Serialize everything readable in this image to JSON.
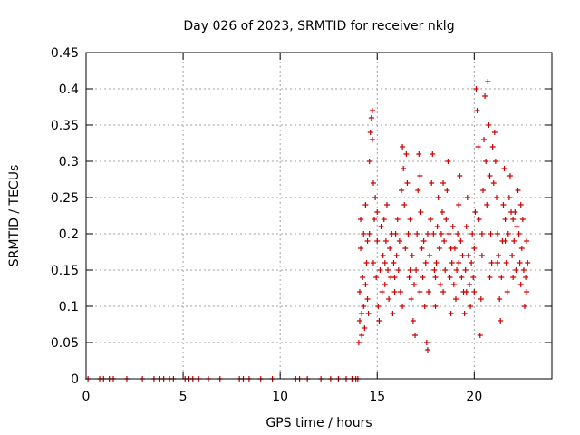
{
  "chart_data": {
    "type": "scatter",
    "title": "Day 026 of 2023, SRMTID for receiver nklg",
    "xlabel": "GPS time / hours",
    "ylabel": "SRMTID / TECUs",
    "xlim": [
      0,
      24
    ],
    "ylim": [
      0,
      0.45
    ],
    "xticks": [
      0,
      5,
      10,
      15,
      20
    ],
    "xtick_labels": [
      "0",
      "5",
      "10",
      "15",
      "20"
    ],
    "yticks": [
      0,
      0.05,
      0.1,
      0.15,
      0.2,
      0.25,
      0.3,
      0.35,
      0.4,
      0.45
    ],
    "ytick_labels": [
      "0",
      "0.05",
      "0.1",
      "0.15",
      "0.2",
      "0.25",
      "0.3",
      "0.35",
      "0.4",
      "0.45"
    ],
    "grid": true,
    "marker": "+",
    "marker_color": "#cc0000",
    "series": [
      {
        "name": "SRMTID",
        "points": [
          [
            0.1,
            0
          ],
          [
            0.7,
            0
          ],
          [
            0.9,
            0
          ],
          [
            1.2,
            0
          ],
          [
            1.4,
            0
          ],
          [
            2.1,
            0
          ],
          [
            2.9,
            0
          ],
          [
            3.5,
            0
          ],
          [
            3.8,
            0
          ],
          [
            4.0,
            0
          ],
          [
            4.3,
            0
          ],
          [
            4.5,
            0
          ],
          [
            5.1,
            0
          ],
          [
            5.3,
            0
          ],
          [
            5.5,
            0
          ],
          [
            5.8,
            0
          ],
          [
            6.3,
            0
          ],
          [
            6.9,
            0
          ],
          [
            7.9,
            0
          ],
          [
            8.1,
            0
          ],
          [
            8.4,
            0
          ],
          [
            9.0,
            0
          ],
          [
            9.6,
            0
          ],
          [
            10.8,
            0
          ],
          [
            11.0,
            0
          ],
          [
            11.4,
            0
          ],
          [
            12.1,
            0
          ],
          [
            12.6,
            0
          ],
          [
            13.0,
            0
          ],
          [
            13.4,
            0
          ],
          [
            13.7,
            0
          ],
          [
            13.9,
            0
          ],
          [
            14.0,
            0
          ],
          [
            14.05,
            0.05
          ],
          [
            14.1,
            0.08
          ],
          [
            14.1,
            0.12
          ],
          [
            14.15,
            0.18
          ],
          [
            14.15,
            0.22
          ],
          [
            14.2,
            0.09
          ],
          [
            14.25,
            0.14
          ],
          [
            14.3,
            0.1
          ],
          [
            14.3,
            0.2
          ],
          [
            14.35,
            0.07
          ],
          [
            14.4,
            0.13
          ],
          [
            14.4,
            0.24
          ],
          [
            14.45,
            0.16
          ],
          [
            14.5,
            0.11
          ],
          [
            14.55,
            0.09
          ],
          [
            14.6,
            0.2
          ],
          [
            14.6,
            0.3
          ],
          [
            14.65,
            0.34
          ],
          [
            14.7,
            0.36
          ],
          [
            14.75,
            0.37
          ],
          [
            14.75,
            0.33
          ],
          [
            14.8,
            0.27
          ],
          [
            14.8,
            0.16
          ],
          [
            14.85,
            0.22
          ],
          [
            14.9,
            0.25
          ],
          [
            14.95,
            0.14
          ],
          [
            15.0,
            0.19
          ],
          [
            15.05,
            0.1
          ],
          [
            15.1,
            0.08
          ],
          [
            15.15,
            0.15
          ],
          [
            15.2,
            0.21
          ],
          [
            15.25,
            0.12
          ],
          [
            15.3,
            0.17
          ],
          [
            15.35,
            0.22
          ],
          [
            15.4,
            0.13
          ],
          [
            15.45,
            0.19
          ],
          [
            15.5,
            0.24
          ],
          [
            15.55,
            0.15
          ],
          [
            15.6,
            0.11
          ],
          [
            15.65,
            0.18
          ],
          [
            15.7,
            0.14
          ],
          [
            15.75,
            0.2
          ],
          [
            15.8,
            0.09
          ],
          [
            15.85,
            0.16
          ],
          [
            15.9,
            0.12
          ],
          [
            15.95,
            0.2
          ],
          [
            16.0,
            0.17
          ],
          [
            16.05,
            0.22
          ],
          [
            16.1,
            0.15
          ],
          [
            16.15,
            0.19
          ],
          [
            16.2,
            0.12
          ],
          [
            16.25,
            0.26
          ],
          [
            16.3,
            0.32
          ],
          [
            16.35,
            0.29
          ],
          [
            16.4,
            0.24
          ],
          [
            16.45,
            0.18
          ],
          [
            16.5,
            0.31
          ],
          [
            16.55,
            0.27
          ],
          [
            16.6,
            0.2
          ],
          [
            16.65,
            0.14
          ],
          [
            16.7,
            0.22
          ],
          [
            16.75,
            0.11
          ],
          [
            16.8,
            0.17
          ],
          [
            16.85,
            0.08
          ],
          [
            16.9,
            0.13
          ],
          [
            16.95,
            0.06
          ],
          [
            17.0,
            0.15
          ],
          [
            17.05,
            0.2
          ],
          [
            17.1,
            0.26
          ],
          [
            17.15,
            0.31
          ],
          [
            17.2,
            0.28
          ],
          [
            17.25,
            0.23
          ],
          [
            17.3,
            0.18
          ],
          [
            17.35,
            0.14
          ],
          [
            17.4,
            0.19
          ],
          [
            17.45,
            0.1
          ],
          [
            17.5,
            0.16
          ],
          [
            17.55,
            0.05
          ],
          [
            17.6,
            0.04
          ],
          [
            17.65,
            0.12
          ],
          [
            17.7,
            0.17
          ],
          [
            17.75,
            0.22
          ],
          [
            17.8,
            0.27
          ],
          [
            17.85,
            0.31
          ],
          [
            17.9,
            0.2
          ],
          [
            17.95,
            0.15
          ],
          [
            18.0,
            0.1
          ],
          [
            18.05,
            0.16
          ],
          [
            18.1,
            0.21
          ],
          [
            18.15,
            0.25
          ],
          [
            18.2,
            0.18
          ],
          [
            18.25,
            0.13
          ],
          [
            18.3,
            0.2
          ],
          [
            18.35,
            0.23
          ],
          [
            18.4,
            0.27
          ],
          [
            18.45,
            0.19
          ],
          [
            18.5,
            0.15
          ],
          [
            18.55,
            0.22
          ],
          [
            18.6,
            0.26
          ],
          [
            18.65,
            0.3
          ],
          [
            18.7,
            0.2
          ],
          [
            18.75,
            0.14
          ],
          [
            18.8,
            0.09
          ],
          [
            18.85,
            0.16
          ],
          [
            18.9,
            0.21
          ],
          [
            18.95,
            0.13
          ],
          [
            19.0,
            0.18
          ],
          [
            19.05,
            0.11
          ],
          [
            19.1,
            0.15
          ],
          [
            19.15,
            0.2
          ],
          [
            19.2,
            0.24
          ],
          [
            19.25,
            0.28
          ],
          [
            19.3,
            0.19
          ],
          [
            19.35,
            0.14
          ],
          [
            19.4,
            0.17
          ],
          [
            19.45,
            0.12
          ],
          [
            19.5,
            0.09
          ],
          [
            19.55,
            0.15
          ],
          [
            19.6,
            0.21
          ],
          [
            19.65,
            0.25
          ],
          [
            19.7,
            0.17
          ],
          [
            19.75,
            0.13
          ],
          [
            19.8,
            0.1
          ],
          [
            19.85,
            0.16
          ],
          [
            19.9,
            0.2
          ],
          [
            19.95,
            0.14
          ],
          [
            20.0,
            0.18
          ],
          [
            20.05,
            0.23
          ],
          [
            20.1,
            0.4
          ],
          [
            20.15,
            0.37
          ],
          [
            20.2,
            0.32
          ],
          [
            20.25,
            0.22
          ],
          [
            20.3,
            0.06
          ],
          [
            20.35,
            0.11
          ],
          [
            20.4,
            0.17
          ],
          [
            20.45,
            0.26
          ],
          [
            20.5,
            0.33
          ],
          [
            20.55,
            0.39
          ],
          [
            20.6,
            0.3
          ],
          [
            20.65,
            0.24
          ],
          [
            20.7,
            0.41
          ],
          [
            20.75,
            0.35
          ],
          [
            20.8,
            0.28
          ],
          [
            20.85,
            0.2
          ],
          [
            20.9,
            0.16
          ],
          [
            20.95,
            0.32
          ],
          [
            21.0,
            0.27
          ],
          [
            21.05,
            0.34
          ],
          [
            21.1,
            0.3
          ],
          [
            21.15,
            0.25
          ],
          [
            21.2,
            0.2
          ],
          [
            21.25,
            0.17
          ],
          [
            21.3,
            0.11
          ],
          [
            21.35,
            0.08
          ],
          [
            21.4,
            0.14
          ],
          [
            21.45,
            0.19
          ],
          [
            21.5,
            0.24
          ],
          [
            21.55,
            0.29
          ],
          [
            21.6,
            0.22
          ],
          [
            21.65,
            0.16
          ],
          [
            21.7,
            0.12
          ],
          [
            21.75,
            0.2
          ],
          [
            21.8,
            0.25
          ],
          [
            21.85,
            0.28
          ],
          [
            21.9,
            0.23
          ],
          [
            21.95,
            0.17
          ],
          [
            22.0,
            0.14
          ],
          [
            22.05,
            0.19
          ],
          [
            22.1,
            0.23
          ],
          [
            22.15,
            0.15
          ],
          [
            22.2,
            0.21
          ],
          [
            22.25,
            0.26
          ],
          [
            22.3,
            0.2
          ],
          [
            22.35,
            0.16
          ],
          [
            22.4,
            0.13
          ],
          [
            22.45,
            0.18
          ],
          [
            22.5,
            0.22
          ],
          [
            22.55,
            0.15
          ],
          [
            22.6,
            0.1
          ],
          [
            22.65,
            0.14
          ],
          [
            22.7,
            0.19
          ],
          [
            22.75,
            0.16
          ],
          [
            14.2,
            0.06
          ],
          [
            14.5,
            0.19
          ],
          [
            15.0,
            0.23
          ],
          [
            15.4,
            0.16
          ],
          [
            15.9,
            0.14
          ],
          [
            16.3,
            0.1
          ],
          [
            16.7,
            0.15
          ],
          [
            17.2,
            0.12
          ],
          [
            17.6,
            0.2
          ],
          [
            18.0,
            0.14
          ],
          [
            18.4,
            0.12
          ],
          [
            18.8,
            0.18
          ],
          [
            19.2,
            0.16
          ],
          [
            19.6,
            0.12
          ],
          [
            20.0,
            0.12
          ],
          [
            20.4,
            0.2
          ],
          [
            20.8,
            0.14
          ],
          [
            21.2,
            0.16
          ],
          [
            21.6,
            0.19
          ],
          [
            22.0,
            0.22
          ],
          [
            22.4,
            0.24
          ],
          [
            22.7,
            0.12
          ]
        ]
      }
    ]
  }
}
